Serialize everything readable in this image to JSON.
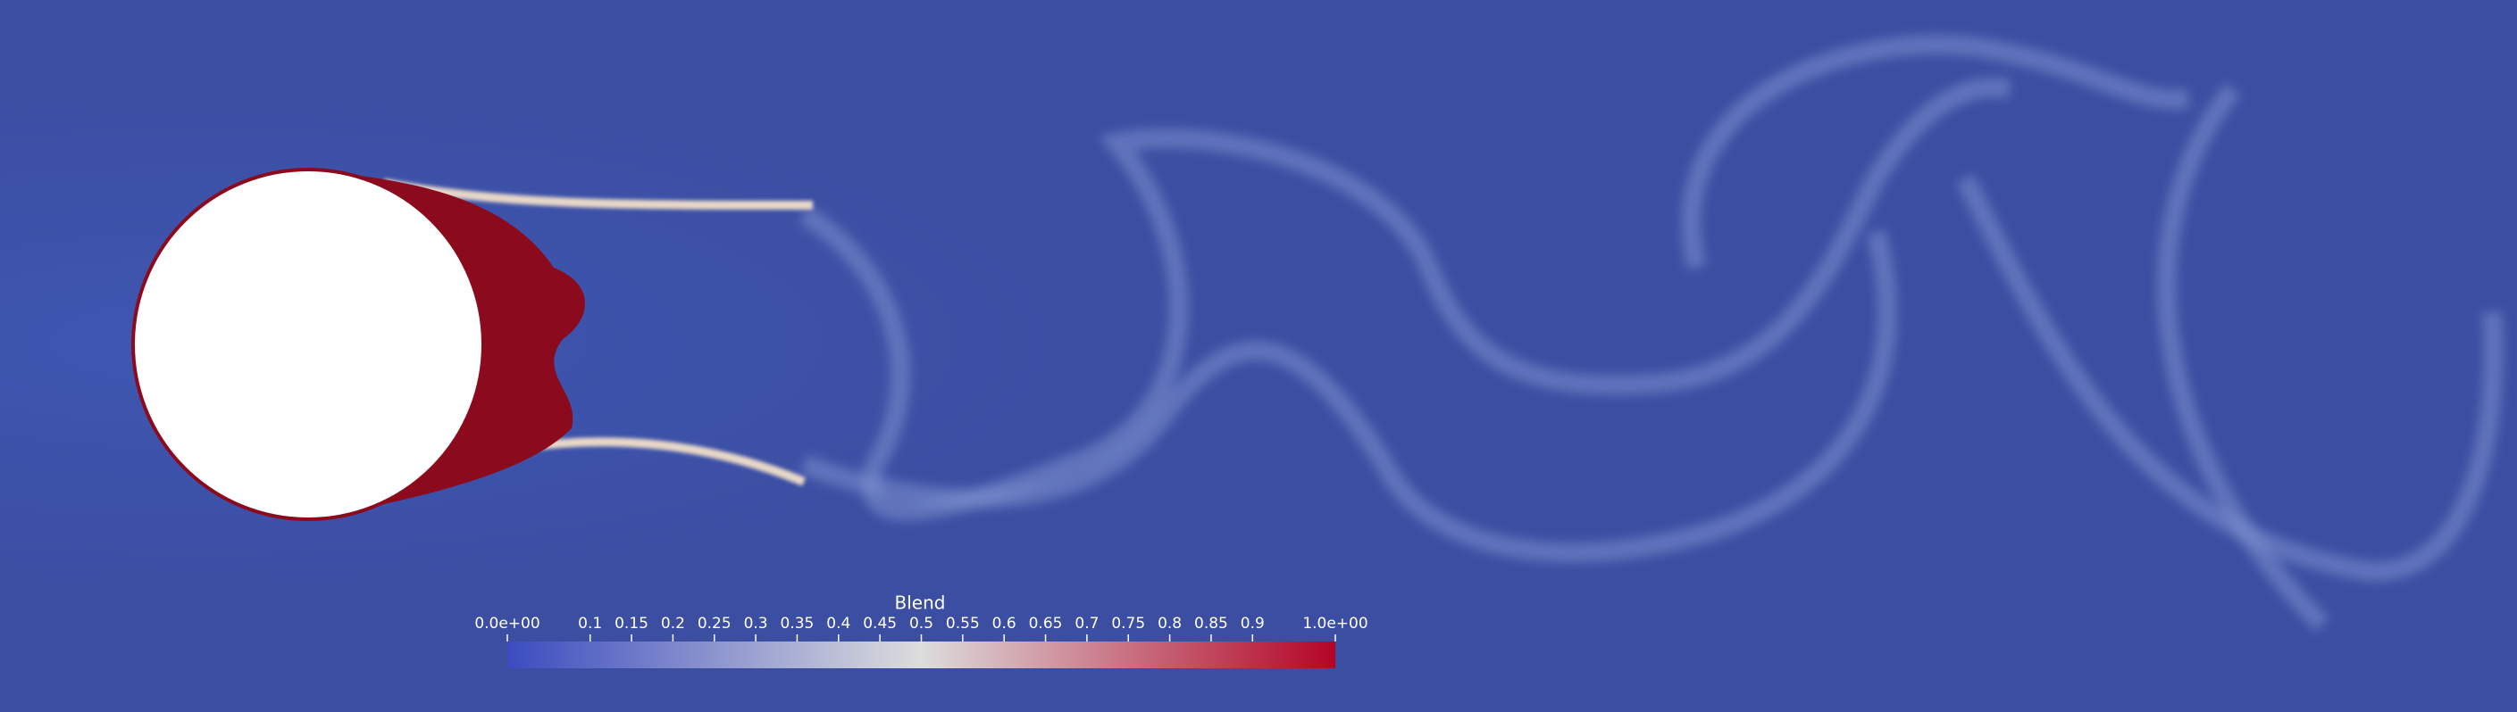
{
  "colorbar": {
    "title": "Blend",
    "range": [
      0,
      1
    ],
    "ticks": [
      {
        "value": 0,
        "label": "0.0e+00"
      },
      0.1,
      0.15,
      0.2,
      0.25,
      0.3,
      0.35,
      0.4,
      0.45,
      0.5,
      0.55,
      0.6,
      0.65,
      0.7,
      0.75,
      0.8,
      0.85,
      0.9,
      {
        "value": 1,
        "label": "1.0e+00"
      }
    ],
    "colors": [
      "#3b4cc0",
      "#dddddd",
      "#b40426"
    ]
  }
}
